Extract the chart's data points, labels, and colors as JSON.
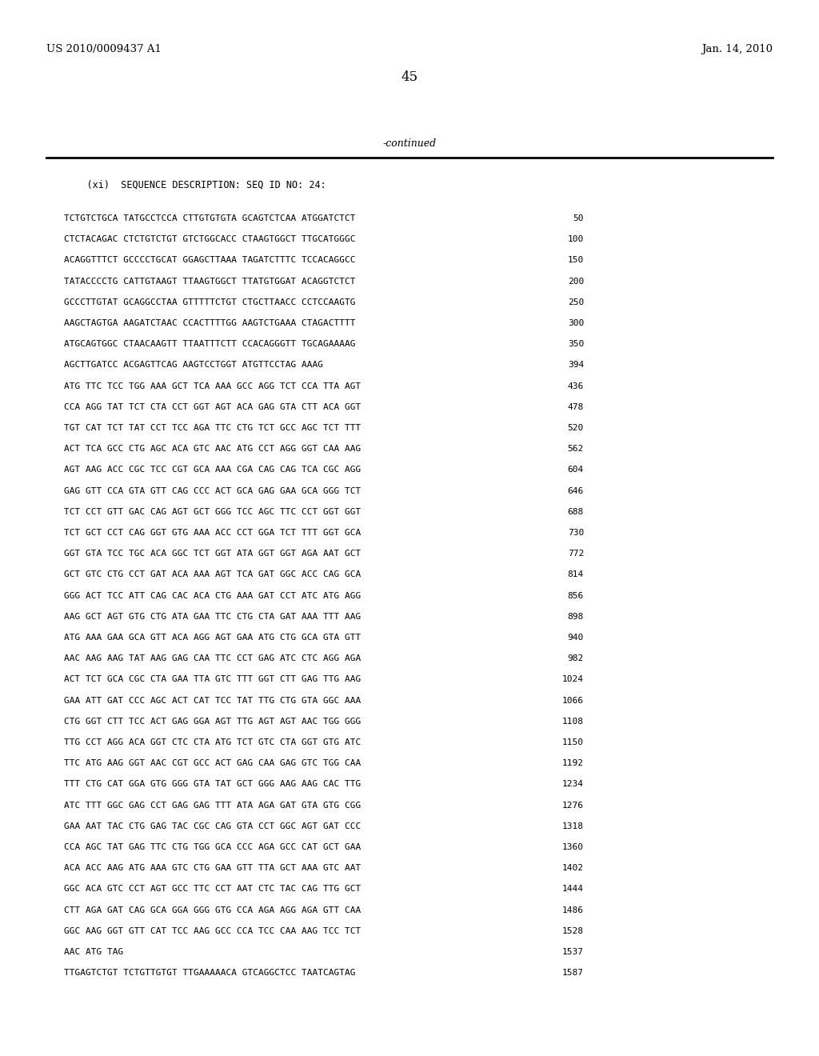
{
  "background_color": "#ffffff",
  "header_left": "US 2010/0009437 A1",
  "header_right": "Jan. 14, 2010",
  "page_number": "45",
  "continued_text": "-continued",
  "sequence_label": "    (xi)  SEQUENCE DESCRIPTION: SEQ ID NO: 24:",
  "lines": [
    [
      "TCTGTCTGCA TATGCCTCCA CTTGTGTGTA GCAGTCTCAA ATGGATCTCT",
      "50"
    ],
    [
      "CTCTACAGAC CTCTGTCTGT GTCTGGCACC CTAAGTGGCT TTGCATGGGC",
      "100"
    ],
    [
      "ACAGGTTTCT GCCCCTGCAT GGAGCTTAAA TAGATCTTTC TCCACAGGCC",
      "150"
    ],
    [
      "TATACCCCTG CATTGTAAGT TTAAGTGGCT TTATGTGGAT ACAGGTCTCT",
      "200"
    ],
    [
      "GCCCTTGTAT GCAGGCCTAA GTTTTTCTGT CTGCTTAACC CCTCCAAGTG",
      "250"
    ],
    [
      "AAGCTAGTGA AAGATCTAAC CCACTTTTGG AAGTCTGAAA CTAGACTTTT",
      "300"
    ],
    [
      "ATGCAGTGGC CTAACAAGTT TTAATTTCTT CCACAGGGTT TGCAGAAAAG",
      "350"
    ],
    [
      "AGCTTGATCC ACGAGTTCAG AAGTCCTGGT ATGTTCCTAG AAAG",
      "394"
    ],
    [
      "ATG TTC TCC TGG AAA GCT TCA AAA GCC AGG TCT CCA TTA AGT",
      "436"
    ],
    [
      "CCA AGG TAT TCT CTA CCT GGT AGT ACA GAG GTA CTT ACA GGT",
      "478"
    ],
    [
      "TGT CAT TCT TAT CCT TCC AGA TTC CTG TCT GCC AGC TCT TTT",
      "520"
    ],
    [
      "ACT TCA GCC CTG AGC ACA GTC AAC ATG CCT AGG GGT CAA AAG",
      "562"
    ],
    [
      "AGT AAG ACC CGC TCC CGT GCA AAA CGA CAG CAG TCA CGC AGG",
      "604"
    ],
    [
      "GAG GTT CCA GTA GTT CAG CCC ACT GCA GAG GAA GCA GGG TCT",
      "646"
    ],
    [
      "TCT CCT GTT GAC CAG AGT GCT GGG TCC AGC TTC CCT GGT GGT",
      "688"
    ],
    [
      "TCT GCT CCT CAG GGT GTG AAA ACC CCT GGA TCT TTT GGT GCA",
      "730"
    ],
    [
      "GGT GTA TCC TGC ACA GGC TCT GGT ATA GGT GGT AGA AAT GCT",
      "772"
    ],
    [
      "GCT GTC CTG CCT GAT ACA AAA AGT TCA GAT GGC ACC CAG GCA",
      "814"
    ],
    [
      "GGG ACT TCC ATT CAG CAC ACA CTG AAA GAT CCT ATC ATG AGG",
      "856"
    ],
    [
      "AAG GCT AGT GTG CTG ATA GAA TTC CTG CTA GAT AAA TTT AAG",
      "898"
    ],
    [
      "ATG AAA GAA GCA GTT ACA AGG AGT GAA ATG CTG GCA GTA GTT",
      "940"
    ],
    [
      "AAC AAG AAG TAT AAG GAG CAA TTC CCT GAG ATC CTC AGG AGA",
      "982"
    ],
    [
      "ACT TCT GCA CGC CTA GAA TTA GTC TTT GGT CTT GAG TTG AAG",
      "1024"
    ],
    [
      "GAA ATT GAT CCC AGC ACT CAT TCC TAT TTG CTG GTA GGC AAA",
      "1066"
    ],
    [
      "CTG GGT CTT TCC ACT GAG GGA AGT TTG AGT AGT AAC TGG GGG",
      "1108"
    ],
    [
      "TTG CCT AGG ACA GGT CTC CTA ATG TCT GTC CTA GGT GTG ATC",
      "1150"
    ],
    [
      "TTC ATG AAG GGT AAC CGT GCC ACT GAG CAA GAG GTC TGG CAA",
      "1192"
    ],
    [
      "TTT CTG CAT GGA GTG GGG GTA TAT GCT GGG AAG AAG CAC TTG",
      "1234"
    ],
    [
      "ATC TTT GGC GAG CCT GAG GAG TTT ATA AGA GAT GTA GTG CGG",
      "1276"
    ],
    [
      "GAA AAT TAC CTG GAG TAC CGC CAG GTA CCT GGC AGT GAT CCC",
      "1318"
    ],
    [
      "CCA AGC TAT GAG TTC CTG TGG GCA CCC AGA GCC CAT GCT GAA",
      "1360"
    ],
    [
      "ACA ACC AAG ATG AAA GTC CTG GAA GTT TTA GCT AAA GTC AAT",
      "1402"
    ],
    [
      "GGC ACA GTC CCT AGT GCC TTC CCT AAT CTC TAC CAG TTG GCT",
      "1444"
    ],
    [
      "CTT AGA GAT CAG GCA GGA GGG GTG CCA AGA AGG AGA GTT CAA",
      "1486"
    ],
    [
      "GGC AAG GGT GTT CAT TCC AAG GCC CCA TCC CAA AAG TCC TCT",
      "1528"
    ],
    [
      "AAC ATG TAG",
      "1537"
    ],
    [
      "TTGAGTCTGT TCTGTTGTGT TTGAAAAACA GTCAGGCTCC TAATCAGTAG",
      "1587"
    ]
  ]
}
